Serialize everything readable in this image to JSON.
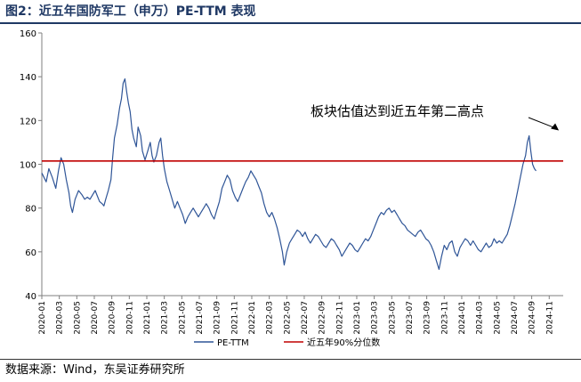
{
  "figure": {
    "title": "图2：近五年国防军工（申万）PE-TTM 表现",
    "source": "数据来源：Wind，东吴证券研究所"
  },
  "colors": {
    "title": "#1f3864",
    "series": "#2f5597",
    "threshold": "#c00000",
    "axis": "#7f7f7f"
  },
  "chart_data": {
    "type": "line",
    "title": "近五年国防军工（申万）PE-TTM 表现",
    "xlabel": "",
    "ylabel": "",
    "ylim": [
      40,
      160
    ],
    "yticks": [
      40,
      60,
      80,
      100,
      120,
      140,
      160
    ],
    "xlim": [
      0,
      59.6
    ],
    "xticks": [
      "2020-01",
      "2020-03",
      "2020-05",
      "2020-07",
      "2020-09",
      "2020-11",
      "2021-01",
      "2021-03",
      "2021-05",
      "2021-07",
      "2021-09",
      "2021-11",
      "2022-01",
      "2022-03",
      "2022-05",
      "2022-07",
      "2022-09",
      "2022-11",
      "2023-01",
      "2023-03",
      "2023-05",
      "2023-07",
      "2023-09",
      "2023-11",
      "2024-01",
      "2024-03",
      "2024-05",
      "2024-07",
      "2024-09",
      "2024-11"
    ],
    "x_unit": "months since 2020-01",
    "annotation": {
      "text": "板块估值达到近五年第二高点",
      "x": 59.1,
      "y": 113
    },
    "legend_position": "bottom-center",
    "series": [
      {
        "name": "PE-TTM",
        "points": [
          [
            0,
            96
          ],
          [
            0.5,
            92
          ],
          [
            0.8,
            98
          ],
          [
            1.2,
            94
          ],
          [
            1.6,
            89
          ],
          [
            1.9,
            97
          ],
          [
            2.2,
            103
          ],
          [
            2.5,
            100
          ],
          [
            2.8,
            93
          ],
          [
            3.1,
            87
          ],
          [
            3.3,
            81
          ],
          [
            3.5,
            78
          ],
          [
            3.8,
            84
          ],
          [
            4.2,
            88
          ],
          [
            4.6,
            86
          ],
          [
            4.9,
            84
          ],
          [
            5.2,
            85
          ],
          [
            5.5,
            84
          ],
          [
            5.8,
            86
          ],
          [
            6.1,
            88
          ],
          [
            6.3,
            86
          ],
          [
            6.6,
            83
          ],
          [
            6.9,
            82
          ],
          [
            7.1,
            81
          ],
          [
            7.3,
            84
          ],
          [
            7.6,
            88
          ],
          [
            7.9,
            93
          ],
          [
            8.1,
            103
          ],
          [
            8.3,
            112
          ],
          [
            8.6,
            118
          ],
          [
            8.9,
            126
          ],
          [
            9.1,
            130
          ],
          [
            9.3,
            137
          ],
          [
            9.5,
            139
          ],
          [
            9.7,
            133
          ],
          [
            9.9,
            128
          ],
          [
            10.1,
            124
          ],
          [
            10.3,
            116
          ],
          [
            10.5,
            112
          ],
          [
            10.8,
            108
          ],
          [
            11,
            117
          ],
          [
            11.3,
            113
          ],
          [
            11.5,
            106
          ],
          [
            11.8,
            102
          ],
          [
            12.1,
            106
          ],
          [
            12.4,
            110
          ],
          [
            12.6,
            104
          ],
          [
            12.8,
            101
          ],
          [
            13.1,
            104
          ],
          [
            13.4,
            110
          ],
          [
            13.6,
            112
          ],
          [
            13.8,
            104
          ],
          [
            14,
            98
          ],
          [
            14.3,
            92
          ],
          [
            14.6,
            88
          ],
          [
            14.9,
            84
          ],
          [
            15.2,
            80
          ],
          [
            15.5,
            83
          ],
          [
            15.8,
            80
          ],
          [
            16.1,
            77
          ],
          [
            16.4,
            73
          ],
          [
            16.7,
            76
          ],
          [
            17,
            78
          ],
          [
            17.3,
            80
          ],
          [
            17.6,
            78
          ],
          [
            17.9,
            76
          ],
          [
            18.2,
            78
          ],
          [
            18.5,
            80
          ],
          [
            18.8,
            82
          ],
          [
            19.1,
            80
          ],
          [
            19.4,
            77
          ],
          [
            19.7,
            75
          ],
          [
            20,
            79
          ],
          [
            20.3,
            83
          ],
          [
            20.6,
            89
          ],
          [
            20.9,
            92
          ],
          [
            21.2,
            95
          ],
          [
            21.5,
            93
          ],
          [
            21.8,
            88
          ],
          [
            22.1,
            85
          ],
          [
            22.4,
            83
          ],
          [
            22.7,
            86
          ],
          [
            23,
            89
          ],
          [
            23.3,
            92
          ],
          [
            23.6,
            94
          ],
          [
            23.9,
            97
          ],
          [
            24.2,
            95
          ],
          [
            24.5,
            93
          ],
          [
            24.8,
            90
          ],
          [
            25.1,
            87
          ],
          [
            25.4,
            82
          ],
          [
            25.7,
            78
          ],
          [
            26,
            76
          ],
          [
            26.3,
            78
          ],
          [
            26.6,
            75
          ],
          [
            26.9,
            71
          ],
          [
            27.2,
            66
          ],
          [
            27.5,
            60
          ],
          [
            27.7,
            54
          ],
          [
            28,
            60
          ],
          [
            28.3,
            64
          ],
          [
            28.6,
            66
          ],
          [
            28.9,
            68
          ],
          [
            29.2,
            70
          ],
          [
            29.5,
            69
          ],
          [
            29.8,
            67
          ],
          [
            30.1,
            69
          ],
          [
            30.4,
            66
          ],
          [
            30.7,
            64
          ],
          [
            31,
            66
          ],
          [
            31.3,
            68
          ],
          [
            31.6,
            67
          ],
          [
            31.9,
            65
          ],
          [
            32.2,
            63
          ],
          [
            32.5,
            62
          ],
          [
            32.8,
            64
          ],
          [
            33.1,
            66
          ],
          [
            33.4,
            65
          ],
          [
            33.7,
            63
          ],
          [
            34,
            61
          ],
          [
            34.3,
            58
          ],
          [
            34.6,
            60
          ],
          [
            34.9,
            62
          ],
          [
            35.2,
            64
          ],
          [
            35.5,
            63
          ],
          [
            35.8,
            61
          ],
          [
            36.1,
            60
          ],
          [
            36.4,
            62
          ],
          [
            36.7,
            64
          ],
          [
            37,
            66
          ],
          [
            37.3,
            65
          ],
          [
            37.6,
            67
          ],
          [
            37.9,
            70
          ],
          [
            38.2,
            73
          ],
          [
            38.5,
            76
          ],
          [
            38.8,
            78
          ],
          [
            39.1,
            77
          ],
          [
            39.4,
            79
          ],
          [
            39.7,
            80
          ],
          [
            40,
            78
          ],
          [
            40.3,
            79
          ],
          [
            40.6,
            77
          ],
          [
            40.9,
            75
          ],
          [
            41.2,
            73
          ],
          [
            41.5,
            72
          ],
          [
            41.8,
            70
          ],
          [
            42.1,
            69
          ],
          [
            42.4,
            68
          ],
          [
            42.7,
            67
          ],
          [
            43,
            69
          ],
          [
            43.3,
            70
          ],
          [
            43.6,
            68
          ],
          [
            43.9,
            66
          ],
          [
            44.2,
            65
          ],
          [
            44.5,
            63
          ],
          [
            44.8,
            60
          ],
          [
            45.1,
            56
          ],
          [
            45.4,
            52
          ],
          [
            45.7,
            58
          ],
          [
            46,
            63
          ],
          [
            46.3,
            61
          ],
          [
            46.6,
            64
          ],
          [
            46.9,
            65
          ],
          [
            47.2,
            60
          ],
          [
            47.5,
            58
          ],
          [
            47.8,
            62
          ],
          [
            48.1,
            64
          ],
          [
            48.4,
            66
          ],
          [
            48.7,
            65
          ],
          [
            49,
            63
          ],
          [
            49.3,
            65
          ],
          [
            49.6,
            63
          ],
          [
            49.9,
            61
          ],
          [
            50.2,
            60
          ],
          [
            50.5,
            62
          ],
          [
            50.8,
            64
          ],
          [
            51.1,
            62
          ],
          [
            51.4,
            63
          ],
          [
            51.7,
            66
          ],
          [
            52,
            64
          ],
          [
            52.3,
            65
          ],
          [
            52.6,
            64
          ],
          [
            52.9,
            66
          ],
          [
            53.2,
            68
          ],
          [
            53.5,
            72
          ],
          [
            53.8,
            77
          ],
          [
            54.1,
            82
          ],
          [
            54.4,
            88
          ],
          [
            54.7,
            94
          ],
          [
            55,
            100
          ],
          [
            55.3,
            104
          ],
          [
            55.5,
            110
          ],
          [
            55.7,
            113
          ],
          [
            55.9,
            106
          ],
          [
            56.1,
            100
          ],
          [
            56.3,
            98
          ],
          [
            56.5,
            97
          ]
        ]
      },
      {
        "name": "近五年90%分位数",
        "value": 101.5
      }
    ]
  }
}
